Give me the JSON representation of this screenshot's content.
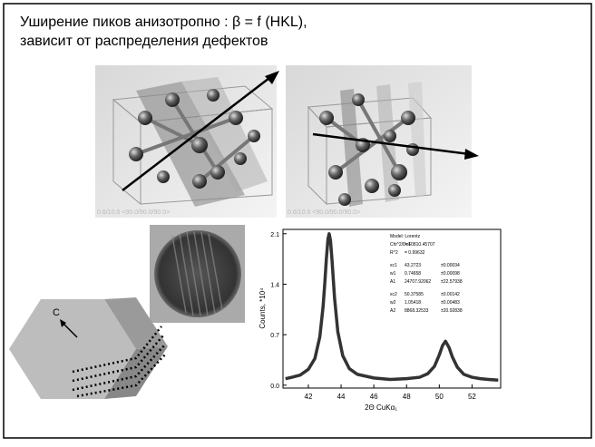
{
  "slide": {
    "title_line1": "Уширение пиков анизотропно : β = f (HKL),",
    "title_line2": "зависит от распределения дефектов",
    "image_captions": [
      "0.6/10.6 <90.0/90.0/90.0>",
      "0.6/10.6 <90.0/90.0/90.0>"
    ],
    "crystal_axis_label": "C"
  },
  "chart_data": {
    "type": "line",
    "x_label": "2Θ CuKα₁",
    "y_label": "Counts, *10⁴",
    "x": [
      40.6,
      41.0,
      41.5,
      42.0,
      42.4,
      42.7,
      42.9,
      43.0,
      43.1,
      43.2,
      43.27,
      43.35,
      43.45,
      43.6,
      43.8,
      44.1,
      44.5,
      45.0,
      46.0,
      47.0,
      48.0,
      48.8,
      49.3,
      49.7,
      50.0,
      50.2,
      50.38,
      50.6,
      50.8,
      51.1,
      51.5,
      52.0,
      52.5,
      53.0,
      53.6
    ],
    "series": [
      {
        "color": "#333333",
        "values": [
          0.09,
          0.11,
          0.14,
          0.22,
          0.37,
          0.67,
          1.09,
          1.4,
          1.75,
          2.03,
          2.1,
          2.01,
          1.72,
          1.21,
          0.74,
          0.41,
          0.23,
          0.15,
          0.1,
          0.08,
          0.09,
          0.11,
          0.16,
          0.26,
          0.42,
          0.55,
          0.61,
          0.52,
          0.39,
          0.25,
          0.15,
          0.11,
          0.09,
          0.08,
          0.07
        ]
      }
    ],
    "xlim": [
      40.45,
      53.75
    ],
    "xticks": [
      42,
      44,
      46,
      48,
      50,
      52
    ],
    "ylim": [
      -0.04,
      2.16
    ],
    "yticks": [
      {
        "value": 0,
        "label": "0.0"
      },
      0.7,
      1.4,
      2.1
    ],
    "fit_report": [
      [
        "Model: Lorentz"
      ],
      [
        "Chi^2/DoF",
        "= 10810.45707"
      ],
      [
        "R^2",
        "= 0.99632"
      ],
      [
        "xc1",
        "43.2723",
        "±0.00034"
      ],
      [
        "w1",
        "0.74658",
        "±0.00098"
      ],
      [
        "A1",
        "24707.92062",
        "±22.57938"
      ],
      [
        "xc2",
        "50.37585",
        "±0.00142"
      ],
      [
        "w2",
        "1.05418",
        "±0.00483"
      ],
      [
        "A2",
        "8868.32533",
        "±20.92838"
      ]
    ]
  }
}
